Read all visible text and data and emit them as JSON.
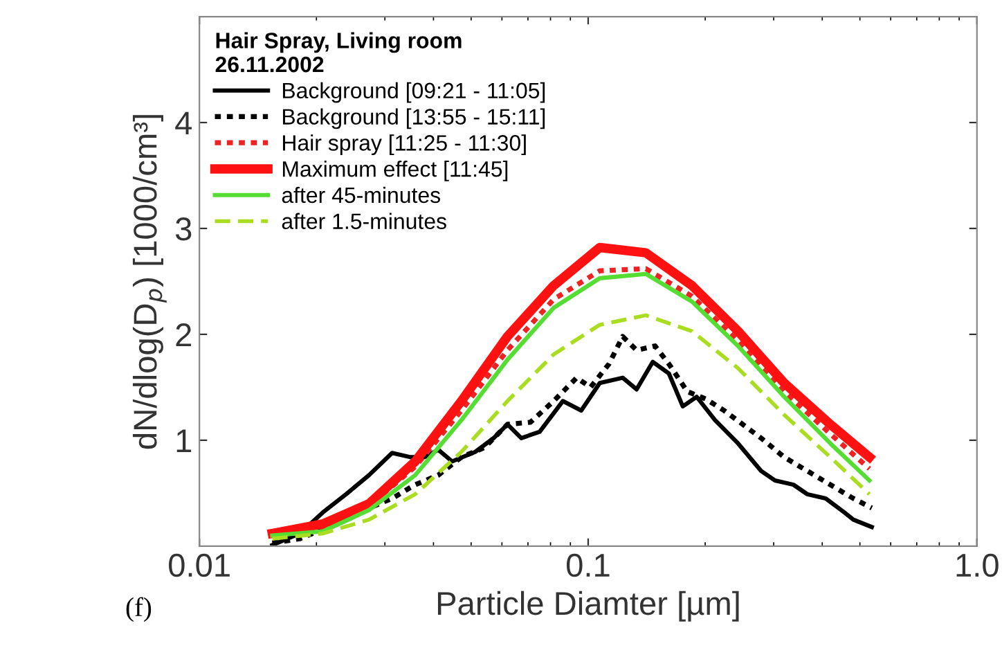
{
  "chart_data": {
    "type": "line",
    "xlabel": "Particle Diamter [µm]",
    "ylabel": "dN/dlog(D$_{p}$) [1000/cm³]",
    "legend_title": "Hair Spray, Living room\n26.11.2002",
    "annotations": [
      "(f)"
    ],
    "log": "x",
    "xlim": [
      0.01,
      1.0
    ],
    "ylim": [
      0,
      5
    ],
    "xticks": [
      0.01,
      0.1,
      {
        "value": 1.0,
        "label": "1.0"
      }
    ],
    "yticks": [
      1,
      2,
      3,
      4
    ],
    "grid": false,
    "legend": "top left",
    "series": [
      {
        "name": "Background [09:21 - 11:05]",
        "color": "#000000",
        "line_style": "solid",
        "x": [
          0.0154,
          0.01814,
          0.0208,
          0.02384,
          0.0273,
          0.03131,
          0.03493,
          0.03792,
          0.04115,
          0.04467,
          0.05122,
          0.05713,
          0.062,
          0.0673,
          0.07504,
          0.08606,
          0.09598,
          0.1071,
          0.1227,
          0.1332,
          0.1466,
          0.1613,
          0.1751,
          0.1901,
          0.212,
          0.2429,
          0.2785,
          0.3023,
          0.3373,
          0.3661,
          0.4083,
          0.4553,
          0.481,
          0.5364
        ],
        "values": [
          0.01,
          0.12,
          0.32,
          0.49,
          0.67,
          0.88,
          0.84,
          0.84,
          0.91,
          0.8,
          0.89,
          1.02,
          1.15,
          1.02,
          1.08,
          1.37,
          1.28,
          1.54,
          1.59,
          1.48,
          1.74,
          1.63,
          1.32,
          1.41,
          1.19,
          0.97,
          0.71,
          0.62,
          0.58,
          0.49,
          0.45,
          0.32,
          0.25,
          0.18
        ]
      },
      {
        "name": "Background [13:55 - 15:11]",
        "color": "#000000",
        "line_style": "dotted",
        "x": [
          0.0154,
          0.01814,
          0.0208,
          0.02384,
          0.0273,
          0.03131,
          0.0359,
          0.04115,
          0.0472,
          0.05409,
          0.062,
          0.07106,
          0.0815,
          0.0934,
          0.1014,
          0.1131,
          0.1227,
          0.1332,
          0.1486,
          0.1613,
          0.1799,
          0.2006,
          0.2238,
          0.2497,
          0.2785,
          0.3193,
          0.3661,
          0.4196,
          0.481,
          0.5364
        ],
        "values": [
          0.03,
          0.07,
          0.16,
          0.27,
          0.36,
          0.45,
          0.58,
          0.67,
          0.84,
          0.93,
          1.15,
          1.17,
          1.37,
          1.59,
          1.5,
          1.72,
          1.98,
          1.85,
          1.89,
          1.72,
          1.46,
          1.39,
          1.28,
          1.15,
          1.02,
          0.84,
          0.71,
          0.58,
          0.45,
          0.36
        ]
      },
      {
        "name": "Hair spray [11:25 - 11:30]",
        "color": "#ee2222",
        "line_style": "dotted",
        "x": [
          0.0154,
          0.0208,
          0.0273,
          0.0359,
          0.0472,
          0.062,
          0.0815,
          0.1071,
          0.1407,
          0.1849,
          0.2429,
          0.3193,
          0.4196,
          0.529
        ],
        "values": [
          0.12,
          0.18,
          0.38,
          0.75,
          1.28,
          1.85,
          2.33,
          2.6,
          2.62,
          2.36,
          1.94,
          1.46,
          1.06,
          0.73
        ]
      },
      {
        "name": "Maximum effect [11:45]",
        "color": "#ff1111",
        "line_style": "solid",
        "x": [
          0.0154,
          0.0208,
          0.0273,
          0.0359,
          0.0472,
          0.062,
          0.0815,
          0.1071,
          0.1407,
          0.1849,
          0.2429,
          0.3193,
          0.4196,
          0.529
        ],
        "values": [
          0.12,
          0.21,
          0.4,
          0.8,
          1.37,
          1.98,
          2.46,
          2.82,
          2.77,
          2.46,
          2.03,
          1.54,
          1.15,
          0.84
        ]
      },
      {
        "name": "after 45-minutes",
        "color": "#55dd33",
        "line_style": "solid",
        "x": [
          0.0154,
          0.0208,
          0.0273,
          0.0359,
          0.0472,
          0.062,
          0.0815,
          0.1071,
          0.1407,
          0.1849,
          0.2429,
          0.3193,
          0.4196,
          0.529
        ],
        "values": [
          0.1,
          0.14,
          0.34,
          0.67,
          1.19,
          1.76,
          2.25,
          2.53,
          2.57,
          2.31,
          1.89,
          1.41,
          0.97,
          0.62
        ]
      },
      {
        "name": "after 1.5-minutes",
        "color": "#aadd22",
        "line_style": "dashed",
        "x": [
          0.0154,
          0.0208,
          0.0273,
          0.0359,
          0.0472,
          0.062,
          0.0815,
          0.1071,
          0.1407,
          0.1849,
          0.2429,
          0.3193,
          0.4196,
          0.529
        ],
        "values": [
          0.07,
          0.12,
          0.25,
          0.49,
          0.89,
          1.37,
          1.81,
          2.09,
          2.18,
          2.03,
          1.68,
          1.24,
          0.84,
          0.49
        ]
      }
    ]
  }
}
